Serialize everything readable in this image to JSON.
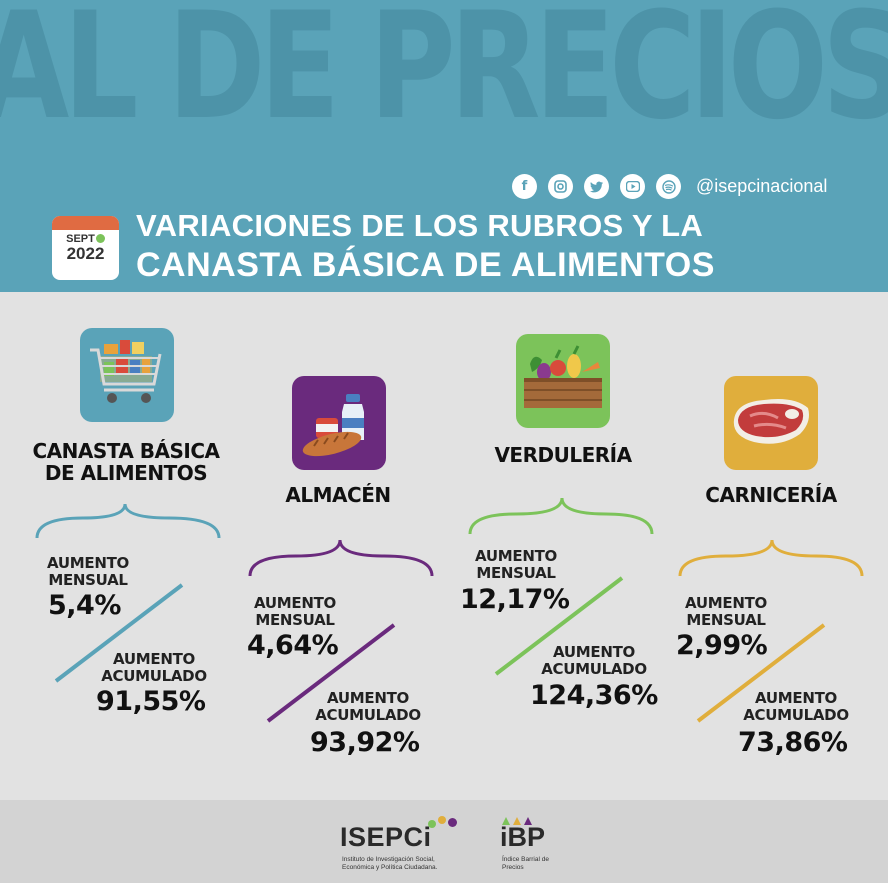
{
  "header": {
    "background_text": "AL DE PRECIOS",
    "social_handle": "@isepcinacional",
    "social_icons": [
      "facebook-icon",
      "instagram-icon",
      "twitter-icon",
      "youtube-icon",
      "spotify-icon"
    ],
    "calendar_month": "SEPT",
    "calendar_year": "2022",
    "title_line1": "VARIACIONES DE LOS RUBROS Y LA",
    "title_line2": "CANASTA BÁSICA DE ALIMENTOS"
  },
  "colors": {
    "header_bg": "#5aa3b8",
    "canasta": "#5aa3b8",
    "almacen": "#6a2a7d",
    "verduleria": "#7cc35a",
    "carniceria": "#e0ae3c"
  },
  "categories": [
    {
      "title": "CANASTA BÁSICA DE ALIMENTOS",
      "icon": "shopping-cart-icon",
      "monthly_label": "AUMENTO MENSUAL",
      "monthly_value": "5,4%",
      "accumulated_label": "AUMENTO ACUMULADO",
      "accumulated_value": "91,55%"
    },
    {
      "title": "ALMACÉN",
      "icon": "grocery-icon",
      "monthly_label": "AUMENTO MENSUAL",
      "monthly_value": "4,64%",
      "accumulated_label": "AUMENTO ACUMULADO",
      "accumulated_value": "93,92%"
    },
    {
      "title": "VERDULERÍA",
      "icon": "vegetables-crate-icon",
      "monthly_label": "AUMENTO MENSUAL",
      "monthly_value": "12,17%",
      "accumulated_label": "AUMENTO ACUMULADO",
      "accumulated_value": "124,36%"
    },
    {
      "title": "CARNICERÍA",
      "icon": "meat-steak-icon",
      "monthly_label": "AUMENTO MENSUAL",
      "monthly_value": "2,99%",
      "accumulated_label": "AUMENTO ACUMULADO",
      "accumulated_value": "73,86%"
    }
  ],
  "footer": {
    "logo1_name": "ISEPCi",
    "logo1_subtitle": "Instituto de Investigación Social, Económica y Política Ciudadana.",
    "logo2_name": "iBP",
    "logo2_subtitle": "Índice Barrial de Precios"
  }
}
